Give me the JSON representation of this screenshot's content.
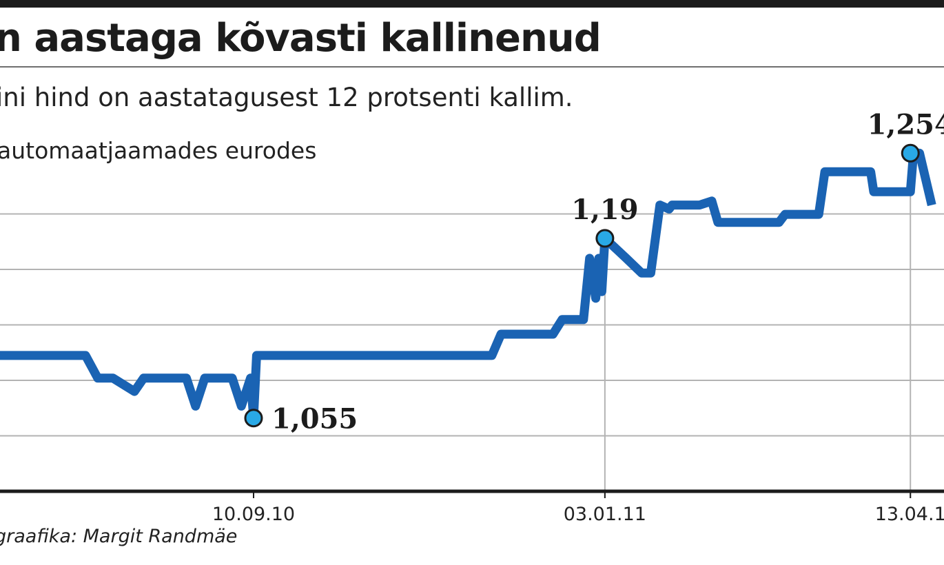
{
  "header": {
    "title": "n aastaga kõvasti kallinenud",
    "subtitle": "ini hind on aastatagusest 12 protsenti kallim.",
    "unit": "automaatjaamades eurodes"
  },
  "credit": "graafika: Margit Randmäe",
  "colors": {
    "line": "#1a63b3",
    "marker": "#29a9e6",
    "grid": "#b3b3b3",
    "axis": "#1c1c1c"
  },
  "chart_data": {
    "type": "line",
    "ylim": [
      1.0,
      1.25
    ],
    "grid": true,
    "x_ticks": [
      "10.09.10",
      "03.01.11",
      "13.04.1"
    ],
    "series": [
      {
        "points": [
          [
            "2010-06-19",
            1.102
          ],
          [
            "2010-07-17",
            1.102
          ],
          [
            "2010-07-21",
            1.085
          ],
          [
            "2010-07-26",
            1.085
          ],
          [
            "2010-08-02",
            1.075
          ],
          [
            "2010-08-05",
            1.085
          ],
          [
            "2010-08-19",
            1.085
          ],
          [
            "2010-08-22",
            1.064
          ],
          [
            "2010-08-25",
            1.085
          ],
          [
            "2010-09-03",
            1.085
          ],
          [
            "2010-09-06",
            1.064
          ],
          [
            "2010-09-09",
            1.085
          ],
          [
            "2010-09-10",
            1.055
          ],
          [
            "2010-09-11",
            1.102
          ],
          [
            "2010-11-27",
            1.102
          ],
          [
            "2010-11-30",
            1.118
          ],
          [
            "2010-12-17",
            1.118
          ],
          [
            "2010-12-20",
            1.129
          ],
          [
            "2010-12-27",
            1.129
          ],
          [
            "2010-12-29",
            1.175
          ],
          [
            "2010-12-31",
            1.145
          ],
          [
            "2011-01-01",
            1.175
          ],
          [
            "2011-01-02",
            1.15
          ],
          [
            "2011-01-03",
            1.19
          ],
          [
            "2011-01-10",
            1.175
          ],
          [
            "2011-01-15",
            1.164
          ],
          [
            "2011-01-18",
            1.164
          ],
          [
            "2011-01-21",
            1.215
          ],
          [
            "2011-01-24",
            1.212
          ],
          [
            "2011-01-25",
            1.215
          ],
          [
            "2011-02-03",
            1.215
          ],
          [
            "2011-02-07",
            1.218
          ],
          [
            "2011-02-09",
            1.202
          ],
          [
            "2011-03-01",
            1.202
          ],
          [
            "2011-03-03",
            1.208
          ],
          [
            "2011-03-14",
            1.208
          ],
          [
            "2011-03-16",
            1.24
          ],
          [
            "2011-03-31",
            1.24
          ],
          [
            "2011-04-01",
            1.225
          ],
          [
            "2011-04-13",
            1.225
          ],
          [
            "2011-04-14",
            1.254
          ],
          [
            "2011-04-16",
            1.254
          ],
          [
            "2011-04-20",
            1.215
          ]
        ]
      }
    ],
    "annotations": [
      {
        "x": "2010-09-10",
        "y": 1.055,
        "label": "1,055",
        "position": "right"
      },
      {
        "x": "2011-01-03",
        "y": 1.19,
        "label": "1,19",
        "position": "above"
      },
      {
        "x": "2011-04-13",
        "y": 1.254,
        "label": "1,254",
        "position": "above"
      }
    ]
  }
}
